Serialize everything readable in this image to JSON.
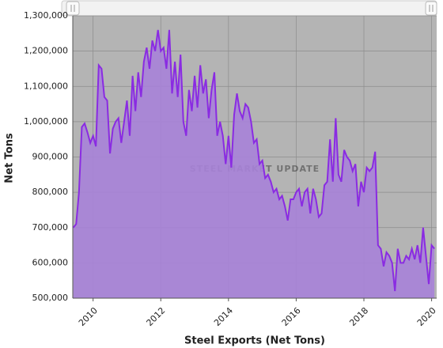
{
  "chart_data": {
    "type": "area",
    "x_label": "Steel Exports (Net Tons)",
    "y_label": "Net Tons",
    "watermark": "STEEL MARKET UPDATE",
    "xlim": [
      2009.4,
      2020.15
    ],
    "xticks": [
      2010,
      2012,
      2014,
      2016,
      2018,
      2020
    ],
    "ylim": [
      500000,
      1300000
    ],
    "yticks": [
      {
        "value": 500000,
        "label": "500,000"
      },
      {
        "value": 600000,
        "label": "600,000"
      },
      {
        "value": 700000,
        "label": "700,000"
      },
      {
        "value": 800000,
        "label": "800,000"
      },
      {
        "value": 900000,
        "label": "900,000"
      },
      {
        "value": 1000000,
        "label": "1,000,000"
      },
      {
        "value": 1100000,
        "label": "1,100,000"
      },
      {
        "value": 1200000,
        "label": "1,200,000"
      },
      {
        "value": 1300000,
        "label": "1,300,000"
      }
    ],
    "grid": true,
    "background": "#b4b4b4",
    "series": [
      {
        "color": "#8a2be2",
        "fill": "#a782d8",
        "x": [
          2009.417,
          2009.5,
          2009.583,
          2009.667,
          2009.75,
          2009.833,
          2009.917,
          2010.0,
          2010.083,
          2010.167,
          2010.25,
          2010.333,
          2010.417,
          2010.5,
          2010.583,
          2010.667,
          2010.75,
          2010.833,
          2010.917,
          2011.0,
          2011.083,
          2011.167,
          2011.25,
          2011.333,
          2011.417,
          2011.5,
          2011.583,
          2011.667,
          2011.75,
          2011.833,
          2011.917,
          2012.0,
          2012.083,
          2012.167,
          2012.25,
          2012.333,
          2012.417,
          2012.5,
          2012.583,
          2012.667,
          2012.75,
          2012.833,
          2012.917,
          2013.0,
          2013.083,
          2013.167,
          2013.25,
          2013.333,
          2013.417,
          2013.5,
          2013.583,
          2013.667,
          2013.75,
          2013.833,
          2013.917,
          2014.0,
          2014.083,
          2014.167,
          2014.25,
          2014.333,
          2014.417,
          2014.5,
          2014.583,
          2014.667,
          2014.75,
          2014.833,
          2014.917,
          2015.0,
          2015.083,
          2015.167,
          2015.25,
          2015.333,
          2015.417,
          2015.5,
          2015.583,
          2015.667,
          2015.75,
          2015.833,
          2015.917,
          2016.0,
          2016.083,
          2016.167,
          2016.25,
          2016.333,
          2016.417,
          2016.5,
          2016.583,
          2016.667,
          2016.75,
          2016.833,
          2016.917,
          2017.0,
          2017.083,
          2017.167,
          2017.25,
          2017.333,
          2017.417,
          2017.5,
          2017.583,
          2017.667,
          2017.75,
          2017.833,
          2017.917,
          2018.0,
          2018.083,
          2018.167,
          2018.25,
          2018.333,
          2018.417,
          2018.5,
          2018.583,
          2018.667,
          2018.75,
          2018.833,
          2018.917,
          2019.0,
          2019.083,
          2019.167,
          2019.25,
          2019.333,
          2019.417,
          2019.5,
          2019.583,
          2019.667,
          2019.75,
          2019.833,
          2019.917,
          2020.0,
          2020.083
        ],
        "values": [
          700000,
          710000,
          800000,
          985000,
          995000,
          970000,
          940000,
          960000,
          930000,
          1160000,
          1150000,
          1070000,
          1060000,
          910000,
          980000,
          1000000,
          1010000,
          940000,
          1000000,
          1060000,
          960000,
          1130000,
          1030000,
          1140000,
          1070000,
          1170000,
          1210000,
          1150000,
          1230000,
          1200000,
          1260000,
          1200000,
          1210000,
          1150000,
          1260000,
          1080000,
          1170000,
          1070000,
          1190000,
          1000000,
          960000,
          1090000,
          1030000,
          1130000,
          1040000,
          1160000,
          1080000,
          1120000,
          1010000,
          1090000,
          1140000,
          960000,
          1000000,
          960000,
          880000,
          960000,
          870000,
          1020000,
          1080000,
          1030000,
          1010000,
          1050000,
          1040000,
          1000000,
          940000,
          950000,
          880000,
          890000,
          840000,
          850000,
          830000,
          800000,
          810000,
          780000,
          790000,
          760000,
          720000,
          780000,
          780000,
          800000,
          810000,
          760000,
          800000,
          810000,
          740000,
          810000,
          780000,
          730000,
          740000,
          820000,
          830000,
          950000,
          830000,
          1010000,
          850000,
          830000,
          920000,
          900000,
          890000,
          860000,
          880000,
          760000,
          830000,
          800000,
          870000,
          860000,
          870000,
          915000,
          650000,
          640000,
          590000,
          630000,
          620000,
          600000,
          520000,
          640000,
          600000,
          600000,
          620000,
          610000,
          640000,
          610000,
          650000,
          600000,
          700000,
          620000,
          540000,
          650000,
          640000
        ]
      }
    ]
  }
}
